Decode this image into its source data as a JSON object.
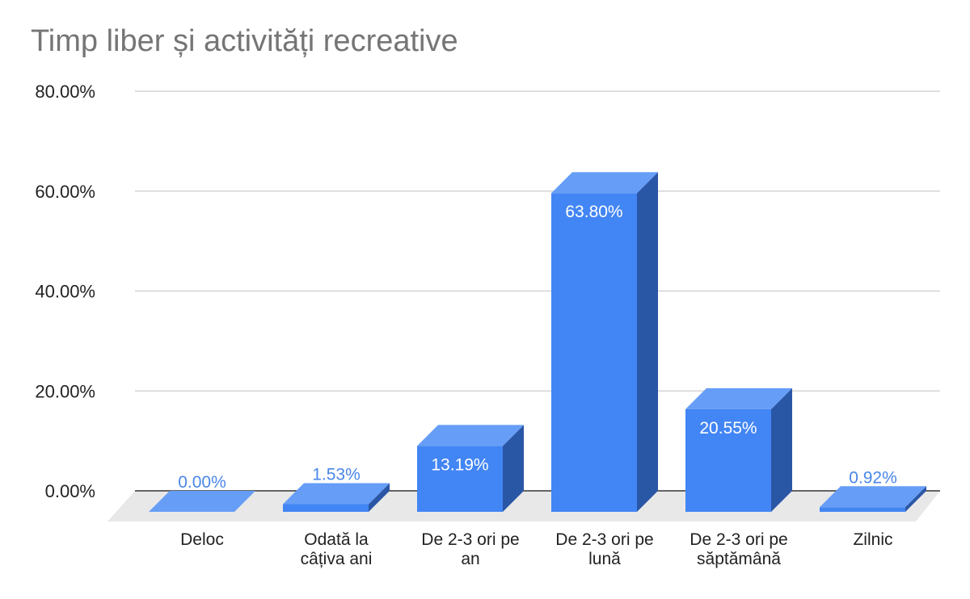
{
  "chart_data": {
    "type": "bar",
    "title": "Timp liber și activități recreative",
    "xlabel": "",
    "ylabel": "",
    "categories": [
      [
        "Deloc"
      ],
      [
        "Odată la",
        "câțiva ani"
      ],
      [
        "De 2-3 ori pe",
        "an"
      ],
      [
        "De 2-3 ori pe",
        "lună"
      ],
      [
        "De 2-3 ori pe",
        "săptămână"
      ],
      [
        "Zilnic"
      ]
    ],
    "values": [
      0.0,
      1.53,
      13.19,
      63.8,
      20.55,
      0.92
    ],
    "value_labels": [
      "0.00%",
      "1.53%",
      "13.19%",
      "63.80%",
      "20.55%",
      "0.92%"
    ],
    "ylim": [
      0,
      80
    ],
    "yticks": [
      0,
      20,
      40,
      60,
      80
    ],
    "ytick_labels": [
      "0.00%",
      "20.00%",
      "40.00%",
      "60.00%",
      "80.00%"
    ],
    "grid": true,
    "legend": "none",
    "style": "3d",
    "colors": {
      "front": "#4285f4",
      "top": "#669df6",
      "side": "#2a56a6",
      "label_inside": "#ffffff",
      "label_outside": "#4a86e8",
      "title": "#757575",
      "grid": "#cccccc",
      "floor": "#e8e8e8"
    }
  }
}
